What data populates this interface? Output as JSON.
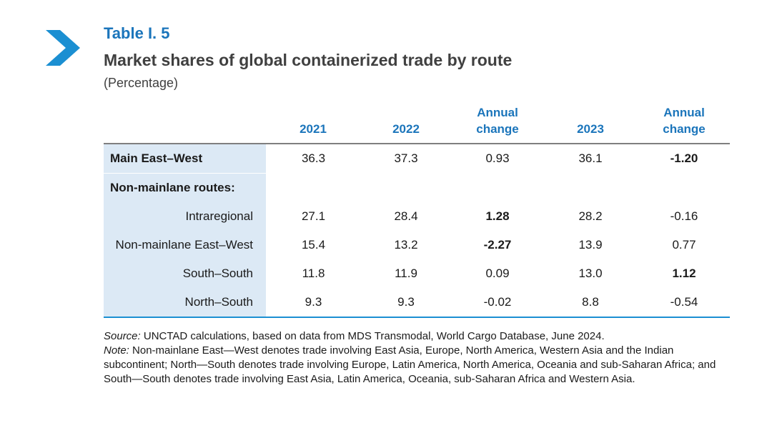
{
  "header": {
    "table_label": "Table I. 5",
    "title": "Market shares of global containerized trade by route",
    "subtitle": "(Percentage)"
  },
  "accent_color": "#1b75bb",
  "table": {
    "columns": [
      "",
      "2021",
      "2022",
      "Annual change",
      "2023",
      "Annual change"
    ],
    "column_lines": [
      [
        ""
      ],
      [
        "2021"
      ],
      [
        "2022"
      ],
      [
        "Annual",
        "change"
      ],
      [
        "2023"
      ],
      [
        "Annual",
        "change"
      ]
    ],
    "rows": [
      {
        "label": "Main East–West",
        "values": [
          "36.3",
          "37.3",
          "0.93",
          "36.1",
          "-1.20"
        ]
      },
      {
        "label": "Non-mainlane routes:",
        "values": [
          "",
          "",
          "",
          "",
          ""
        ]
      },
      {
        "label": "Intraregional",
        "values": [
          "27.1",
          "28.4",
          "1.28",
          "28.2",
          "-0.16"
        ]
      },
      {
        "label": "Non-mainlane East–West",
        "values": [
          "15.4",
          "13.2",
          "-2.27",
          "13.9",
          "0.77"
        ]
      },
      {
        "label": "South–South",
        "values": [
          "11.8",
          "11.9",
          "0.09",
          "13.0",
          "1.12"
        ]
      },
      {
        "label": "North–South",
        "values": [
          "9.3",
          "9.3",
          "-0.02",
          "8.8",
          "-0.54"
        ]
      }
    ],
    "highlight_colors": {
      "negative": "#e0183f",
      "positive": "#5aae3f"
    }
  },
  "footnotes": {
    "source_label": "Source:",
    "source_text": " UNCTAD calculations, based on data from MDS Transmodal, World Cargo Database, June 2024.",
    "note_label": "Note:",
    "note_text": " Non-mainlane East—West denotes trade involving East Asia, Europe, North America, Western Asia and the Indian subcontinent; North—South denotes trade involving Europe, Latin America, North America, Oceania and sub-Saharan Africa; and South—South denotes trade involving East Asia, Latin America, Oceania, sub-Saharan Africa and Western Asia."
  }
}
